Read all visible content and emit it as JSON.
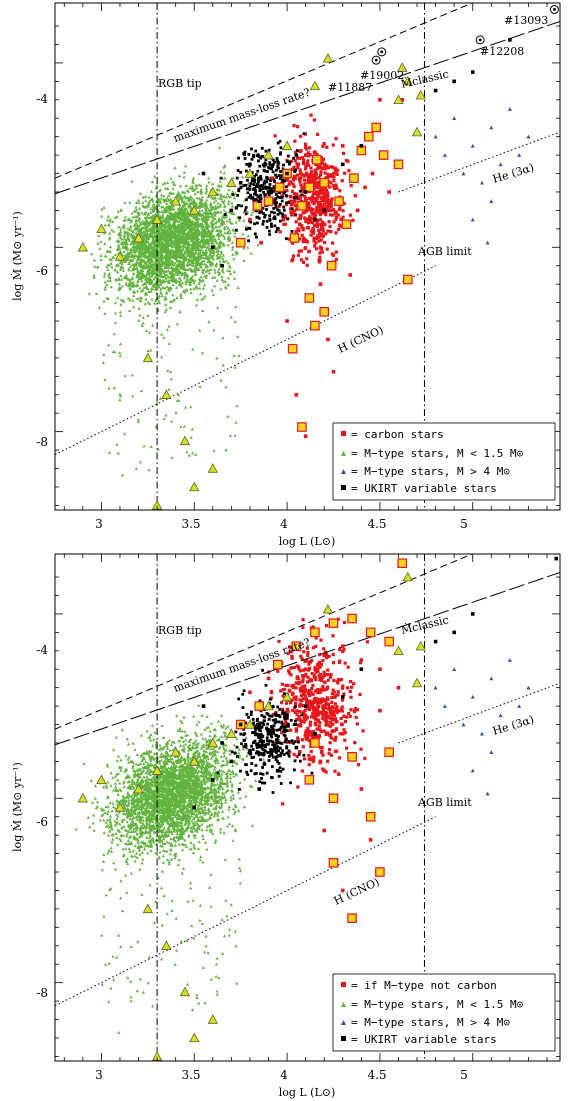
{
  "chart_data": [
    {
      "type": "scatter",
      "xlabel": "log L (L⊙)",
      "ylabel": "log Ṁ (M⊙ yr⁻¹)",
      "xlim": [
        2.75,
        5.47
      ],
      "ylim": [
        -8.85,
        -3.35
      ],
      "xticks": [
        "3",
        "3.5",
        "4",
        "4.5",
        "5"
      ],
      "yticks": [
        "-4",
        "-6",
        "-8"
      ],
      "annotations": {
        "rgb_tip": "RGB tip",
        "max_rate": "maximum mass-loss rate?",
        "m_classic": "Ṁclassic",
        "he": "He (3α)",
        "agb_limit": "AGB limit",
        "h_cno": "H (CNO)",
        "id_13093": "#13093",
        "id_12208": "#12208",
        "id_19002": "#19002",
        "id_11887": "#11887"
      },
      "legend": [
        "= carbon stars",
        "= M−type stars, M < 1.5 M⊙",
        "= M−type stars, M > 4 M⊙",
        "= UKIRT variable stars"
      ],
      "legend_position": "bottom-right",
      "reference_lines": [
        {
          "name": "RGB tip",
          "x": 3.3
        },
        {
          "name": "AGB limit",
          "x": 4.74
        },
        {
          "name": "maximum mass-loss rate?",
          "x": [
            2.75,
            5.47
          ],
          "y": [
            -5.25,
            -2.95
          ]
        },
        {
          "name": "Ṁclassic",
          "x": [
            2.75,
            5.47
          ],
          "y": [
            -5.42,
            -3.55
          ]
        },
        {
          "name": "He (3α)",
          "x": [
            4.6,
            5.47
          ],
          "y": [
            -5.4,
            -4.75
          ]
        },
        {
          "name": "H (CNO)",
          "x": [
            2.75,
            4.8
          ],
          "y": [
            -8.25,
            -6.2
          ]
        }
      ],
      "labeled_stars": [
        {
          "label": "#13093",
          "x": 5.44,
          "y": -3.42
        },
        {
          "label": "#12208",
          "x": 5.04,
          "y": -3.75
        },
        {
          "label": "#19002",
          "x": 4.51,
          "y": -3.88
        },
        {
          "label": "#11887",
          "x": 4.48,
          "y": -3.97
        }
      ],
      "series": [
        {
          "name": "carbon stars",
          "color": "#e8161b",
          "highlighted_color": "#f7d21f",
          "points": [
            [
              3.75,
              -5.95
            ],
            [
              3.8,
              -5.7
            ],
            [
              3.84,
              -5.55
            ],
            [
              3.86,
              -5.95
            ],
            [
              3.9,
              -5.5
            ],
            [
              3.92,
              -5.25
            ],
            [
              3.96,
              -5.35
            ],
            [
              3.98,
              -5.7
            ],
            [
              4.0,
              -5.2
            ],
            [
              4.02,
              -5.45
            ],
            [
              4.04,
              -5.9
            ],
            [
              4.06,
              -5.1
            ],
            [
              4.08,
              -5.55
            ],
            [
              4.1,
              -5.0
            ],
            [
              4.12,
              -5.35
            ],
            [
              4.14,
              -5.8
            ],
            [
              4.16,
              -5.05
            ],
            [
              4.18,
              -6.0
            ],
            [
              4.2,
              -5.3
            ],
            [
              4.22,
              -5.6
            ],
            [
              4.24,
              -6.2
            ],
            [
              4.26,
              -5.15
            ],
            [
              4.28,
              -5.5
            ],
            [
              4.3,
              -4.9
            ],
            [
              4.32,
              -5.75
            ],
            [
              4.34,
              -6.3
            ],
            [
              4.36,
              -5.25
            ],
            [
              4.38,
              -5.6
            ],
            [
              4.4,
              -4.95
            ],
            [
              4.42,
              -5.35
            ],
            [
              4.44,
              -4.8
            ],
            [
              4.46,
              -5.2
            ],
            [
              4.48,
              -4.7
            ],
            [
              4.5,
              -4.4
            ],
            [
              4.52,
              -5.0
            ],
            [
              4.55,
              -5.4
            ],
            [
              4.6,
              -5.1
            ],
            [
              4.62,
              -4.4
            ],
            [
              4.65,
              -6.35
            ],
            [
              4.18,
              -6.4
            ],
            [
              4.2,
              -6.7
            ],
            [
              4.22,
              -7.0
            ],
            [
              4.15,
              -6.85
            ],
            [
              4.25,
              -7.35
            ],
            [
              4.12,
              -6.55
            ],
            [
              4.05,
              -7.6
            ],
            [
              4.08,
              -7.95
            ],
            [
              4.1,
              -8.05
            ],
            [
              4.03,
              -7.1
            ],
            [
              4.0,
              -6.8
            ]
          ]
        },
        {
          "name": "M-type stars, M < 1.5 M⊙",
          "color": "#61b33d",
          "points": [
            [
              2.9,
              -6.0
            ],
            [
              3.0,
              -5.8
            ],
            [
              3.1,
              -6.1
            ],
            [
              3.2,
              -5.9
            ],
            [
              3.3,
              -5.7
            ],
            [
              3.4,
              -5.5
            ],
            [
              3.5,
              -5.6
            ],
            [
              3.6,
              -5.4
            ],
            [
              3.7,
              -5.3
            ],
            [
              3.8,
              -5.2
            ],
            [
              3.9,
              -5.0
            ],
            [
              4.0,
              -4.9
            ],
            [
              3.25,
              -7.2
            ],
            [
              3.35,
              -7.6
            ],
            [
              3.45,
              -8.1
            ],
            [
              3.6,
              -8.4
            ],
            [
              3.5,
              -8.6
            ],
            [
              3.3,
              -8.8
            ],
            [
              4.22,
              -3.95
            ],
            [
              4.15,
              -4.25
            ],
            [
              4.6,
              -4.4
            ],
            [
              4.7,
              -4.75
            ],
            [
              4.62,
              -4.05
            ],
            [
              4.65,
              -4.2
            ],
            [
              4.72,
              -4.35
            ]
          ]
        },
        {
          "name": "M-type stars, M > 4 M⊙",
          "color": "#3a4fb0",
          "points": [
            [
              4.8,
              -4.8
            ],
            [
              4.85,
              -5.0
            ],
            [
              4.9,
              -4.6
            ],
            [
              4.95,
              -5.2
            ],
            [
              5.0,
              -4.9
            ],
            [
              5.05,
              -5.3
            ],
            [
              5.1,
              -4.7
            ],
            [
              5.15,
              -5.1
            ],
            [
              5.2,
              -4.5
            ],
            [
              5.25,
              -5.0
            ],
            [
              5.3,
              -4.8
            ],
            [
              5.1,
              -5.5
            ],
            [
              5.0,
              -5.7
            ],
            [
              5.08,
              -5.95
            ]
          ]
        },
        {
          "name": "UKIRT variable stars",
          "color": "#000000",
          "points": [
            [
              3.7,
              -5.6
            ],
            [
              3.75,
              -5.3
            ],
            [
              3.8,
              -5.1
            ],
            [
              3.85,
              -5.5
            ],
            [
              3.9,
              -5.4
            ],
            [
              3.95,
              -5.8
            ],
            [
              4.0,
              -5.2
            ],
            [
              4.05,
              -5.0
            ],
            [
              4.1,
              -5.4
            ],
            [
              4.15,
              -5.7
            ],
            [
              3.6,
              -6.0
            ],
            [
              3.55,
              -5.2
            ],
            [
              3.65,
              -6.2
            ],
            [
              4.2,
              -5.6
            ],
            [
              4.3,
              -5.1
            ],
            [
              4.4,
              -4.9
            ],
            [
              4.8,
              -4.3
            ],
            [
              4.9,
              -4.2
            ],
            [
              5.0,
              -4.1
            ],
            [
              5.2,
              -3.75
            ]
          ]
        }
      ]
    },
    {
      "type": "scatter",
      "xlabel": "log L (L⊙)",
      "ylabel": "log Ṁ (M⊙ yr⁻¹)",
      "xlim": [
        2.75,
        5.47
      ],
      "ylim": [
        -8.85,
        -3.35
      ],
      "xticks": [
        "3",
        "3.5",
        "4",
        "4.5",
        "5"
      ],
      "yticks": [
        "-4",
        "-6",
        "-8"
      ],
      "annotations": {
        "rgb_tip": "RGB tip",
        "max_rate": "maximum mass-loss rate?",
        "m_classic": "Ṁclassic",
        "he": "He (3α)",
        "agb_limit": "AGB limit",
        "h_cno": "H (CNO)"
      },
      "legend": [
        "= if M−type not carbon",
        "= M−type stars, M < 1.5 M⊙",
        "= M−type stars, M > 4 M⊙",
        "= UKIRT variable stars"
      ],
      "legend_position": "bottom-right",
      "reference_lines": [
        {
          "name": "RGB tip",
          "x": 3.3
        },
        {
          "name": "AGB limit",
          "x": 4.74
        },
        {
          "name": "maximum mass-loss rate?",
          "x": [
            2.75,
            5.47
          ],
          "y": [
            -5.25,
            -2.95
          ]
        },
        {
          "name": "Ṁclassic",
          "x": [
            2.75,
            5.47
          ],
          "y": [
            -5.42,
            -3.55
          ]
        },
        {
          "name": "He (3α)",
          "x": [
            4.6,
            5.47
          ],
          "y": [
            -5.4,
            -4.75
          ]
        },
        {
          "name": "H (CNO)",
          "x": [
            2.75,
            4.8
          ],
          "y": [
            -8.25,
            -6.2
          ]
        }
      ],
      "series": [
        {
          "name": "if M-type not carbon",
          "color": "#e8161b",
          "highlighted_color": "#f7d21f",
          "points": [
            [
              3.75,
              -5.2
            ],
            [
              3.8,
              -4.85
            ],
            [
              3.85,
              -5.0
            ],
            [
              3.9,
              -4.7
            ],
            [
              3.95,
              -4.55
            ],
            [
              4.0,
              -4.9
            ],
            [
              4.05,
              -4.35
            ],
            [
              4.1,
              -4.6
            ],
            [
              4.15,
              -4.2
            ],
            [
              4.2,
              -4.45
            ],
            [
              4.25,
              -4.1
            ],
            [
              4.3,
              -4.35
            ],
            [
              4.35,
              -4.05
            ],
            [
              4.4,
              -4.5
            ],
            [
              4.45,
              -4.2
            ],
            [
              4.5,
              -4.6
            ],
            [
              4.55,
              -4.3
            ],
            [
              4.6,
              -4.8
            ],
            [
              4.62,
              -3.45
            ],
            [
              4.1,
              -5.1
            ],
            [
              4.15,
              -5.4
            ],
            [
              4.2,
              -5.7
            ],
            [
              4.25,
              -6.0
            ],
            [
              4.3,
              -5.3
            ],
            [
              4.35,
              -5.55
            ],
            [
              4.4,
              -5.9
            ],
            [
              4.45,
              -6.2
            ],
            [
              4.5,
              -5.05
            ],
            [
              4.55,
              -5.5
            ],
            [
              4.2,
              -6.35
            ],
            [
              4.25,
              -6.7
            ],
            [
              4.3,
              -7.0
            ],
            [
              4.35,
              -7.3
            ],
            [
              4.45,
              -6.45
            ],
            [
              4.5,
              -6.8
            ],
            [
              4.18,
              -5.6
            ],
            [
              4.12,
              -5.8
            ],
            [
              4.05,
              -5.25
            ]
          ]
        },
        {
          "name": "M-type stars, M < 1.5 M⊙",
          "color": "#61b33d",
          "points": [
            [
              2.9,
              -6.0
            ],
            [
              3.0,
              -5.8
            ],
            [
              3.1,
              -6.1
            ],
            [
              3.2,
              -5.9
            ],
            [
              3.3,
              -5.7
            ],
            [
              3.4,
              -5.5
            ],
            [
              3.5,
              -5.6
            ],
            [
              3.6,
              -5.4
            ],
            [
              3.7,
              -5.3
            ],
            [
              3.8,
              -5.2
            ],
            [
              3.9,
              -5.0
            ],
            [
              4.0,
              -4.9
            ],
            [
              3.25,
              -7.2
            ],
            [
              3.35,
              -7.6
            ],
            [
              3.45,
              -8.1
            ],
            [
              3.6,
              -8.4
            ],
            [
              3.5,
              -8.6
            ],
            [
              3.3,
              -8.8
            ],
            [
              4.22,
              -3.95
            ],
            [
              4.6,
              -4.4
            ],
            [
              4.7,
              -4.75
            ],
            [
              4.65,
              -3.6
            ],
            [
              4.72,
              -4.35
            ]
          ]
        },
        {
          "name": "M-type stars, M > 4 M⊙",
          "color": "#3a4fb0",
          "points": [
            [
              4.8,
              -4.8
            ],
            [
              4.85,
              -5.0
            ],
            [
              4.9,
              -4.6
            ],
            [
              4.95,
              -5.2
            ],
            [
              5.0,
              -4.9
            ],
            [
              5.05,
              -5.3
            ],
            [
              5.1,
              -4.7
            ],
            [
              5.15,
              -5.1
            ],
            [
              5.2,
              -4.5
            ],
            [
              5.25,
              -5.0
            ],
            [
              5.3,
              -4.8
            ],
            [
              5.1,
              -5.5
            ],
            [
              5.0,
              -5.7
            ],
            [
              5.08,
              -5.95
            ]
          ]
        },
        {
          "name": "UKIRT variable stars",
          "color": "#000000",
          "points": [
            [
              3.6,
              -5.8
            ],
            [
              3.65,
              -5.4
            ],
            [
              3.7,
              -5.6
            ],
            [
              3.75,
              -5.2
            ],
            [
              3.8,
              -5.5
            ],
            [
              3.85,
              -5.9
            ],
            [
              3.9,
              -5.3
            ],
            [
              3.95,
              -5.7
            ],
            [
              4.0,
              -5.1
            ],
            [
              4.05,
              -5.45
            ],
            [
              4.1,
              -5.0
            ],
            [
              3.55,
              -5.0
            ],
            [
              3.5,
              -6.1
            ],
            [
              4.15,
              -5.3
            ],
            [
              4.3,
              -4.9
            ],
            [
              4.4,
              -4.6
            ],
            [
              4.8,
              -4.3
            ],
            [
              4.9,
              -4.2
            ],
            [
              5.0,
              -4.0
            ],
            [
              5.45,
              -3.4
            ]
          ]
        }
      ]
    }
  ]
}
